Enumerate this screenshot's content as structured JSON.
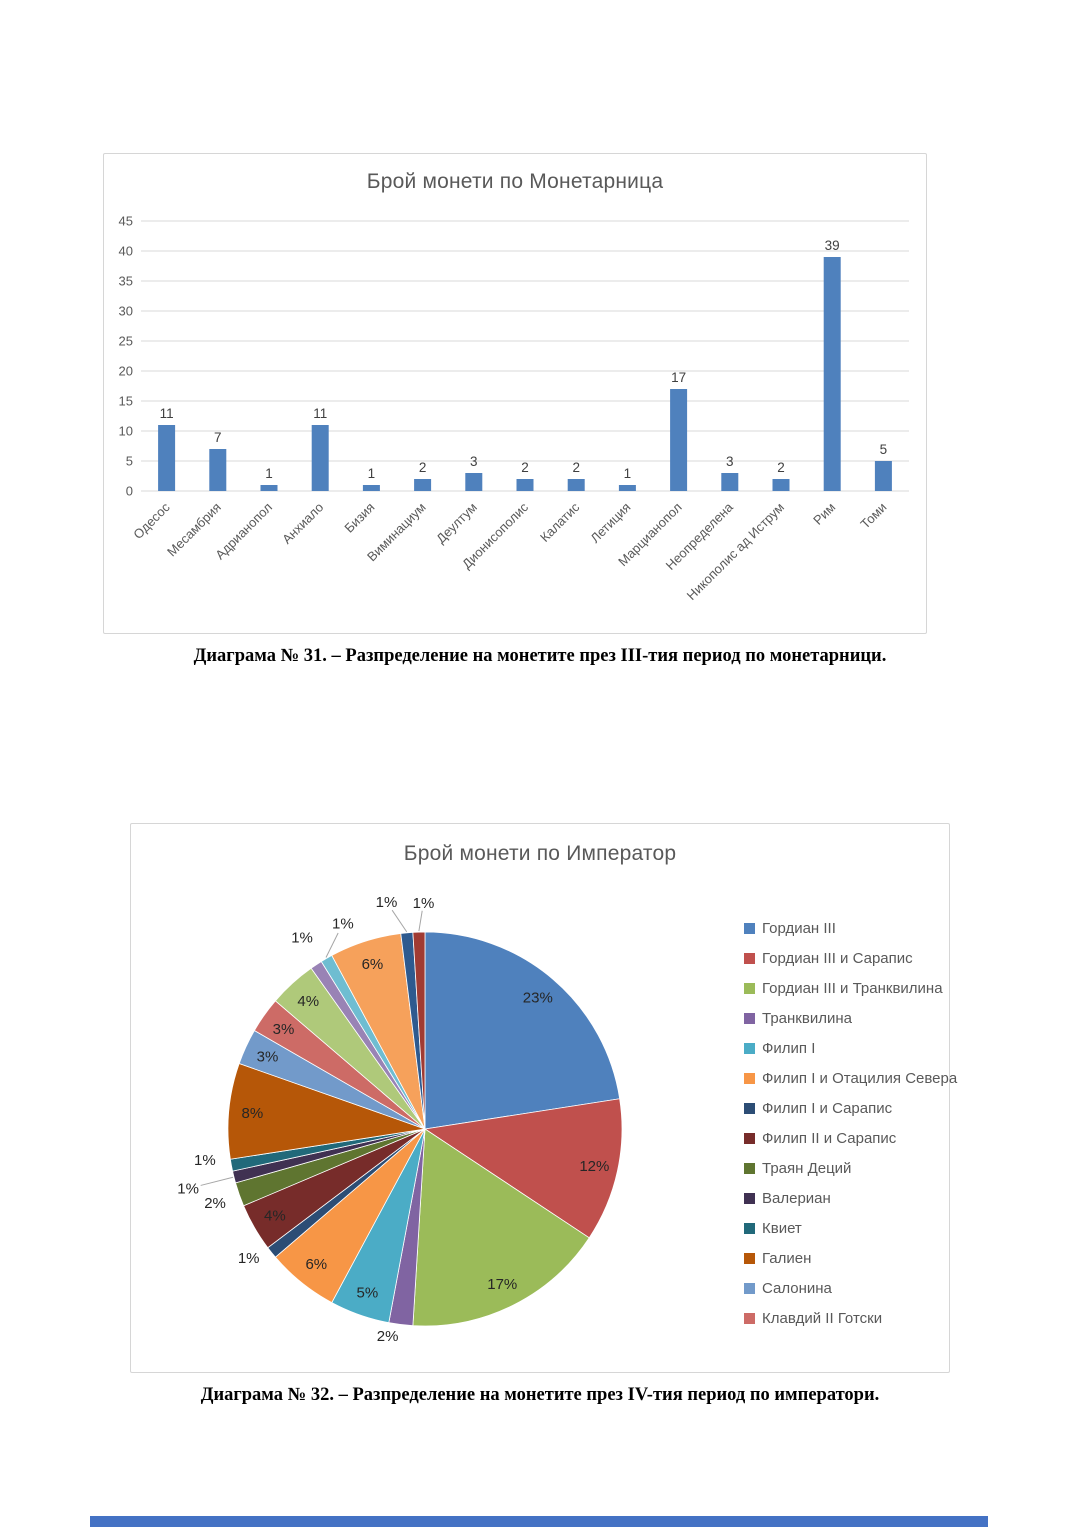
{
  "captions": {
    "diagram31": "Диаграма № 31. – Разпределение на монетите през III-тия период по монетарници.",
    "diagram32": "Диаграма № 32. – Разпределение на монетите през IV-тия период по императори."
  },
  "chart_data": [
    {
      "type": "bar",
      "title": "Брой монети по Монетарница",
      "categories": [
        "Одесос",
        "Месамбрия",
        "Адрианопол",
        "Анхиало",
        "Бизия",
        "Виминациум",
        "Деултум",
        "Дионисополис",
        "Калатис",
        "Летиция",
        "Марцианопол",
        "Неопределена",
        "Никополис ад Иструм",
        "Рим",
        "Томи"
      ],
      "values": [
        11,
        7,
        1,
        11,
        1,
        2,
        3,
        2,
        2,
        1,
        17,
        3,
        2,
        39,
        5
      ],
      "xlabel": "",
      "ylabel": "",
      "ylim": [
        0,
        45
      ],
      "ytick_step": 5,
      "yticks": [
        0,
        5,
        10,
        15,
        20,
        25,
        30,
        35,
        40,
        45
      ],
      "grid": true,
      "data_labels": true,
      "bar_color": "#4F81BD",
      "grid_color": "#D9D9D9",
      "axis_text_color": "#595959",
      "value_label_color": "#404040",
      "legend_position": "none"
    },
    {
      "type": "pie",
      "title": "Брой монети по Император",
      "start_angle_deg": 0,
      "direction": "clockwise",
      "legend_position": "right",
      "legend_visible_count": 14,
      "label_color": "#262626",
      "leader_color": "#A6A6A6",
      "slices": [
        {
          "label": "Гордиан III",
          "pct": 23,
          "color": "#4F81BD"
        },
        {
          "label": "Гордиан III и Сарапис",
          "pct": 12,
          "color": "#C0504D"
        },
        {
          "label": "Гордиан III и Транквилина",
          "pct": 17,
          "color": "#9BBB59"
        },
        {
          "label": "Транквилина",
          "pct": 2,
          "color": "#8064A2"
        },
        {
          "label": "Филип I",
          "pct": 5,
          "color": "#4BACC6"
        },
        {
          "label": "Филип I и Отацилия Севера",
          "pct": 6,
          "color": "#F79646"
        },
        {
          "label": "Филип I и Сарапис",
          "pct": 1,
          "color": "#2C4D75"
        },
        {
          "label": "Филип II и Сарапис",
          "pct": 4,
          "color": "#772C2A"
        },
        {
          "label": "Траян Деций",
          "pct": 2,
          "color": "#5F7530"
        },
        {
          "label": "Валериан",
          "pct": 1,
          "color": "#403152"
        },
        {
          "label": "Квиет",
          "pct": 1,
          "color": "#21697A"
        },
        {
          "label": "Галиен",
          "pct": 8,
          "color": "#B65708"
        },
        {
          "label": "Салонина",
          "pct": 3,
          "color": "#729ACA"
        },
        {
          "label": "Клавдий II Готски",
          "pct": 3,
          "color": "#CD6B66"
        },
        {
          "label": "",
          "pct": 4,
          "color": "#AFC97A"
        },
        {
          "label": "",
          "pct": 1,
          "color": "#9983B5"
        },
        {
          "label": "",
          "pct": 1,
          "color": "#6FBDD1"
        },
        {
          "label": "",
          "pct": 6,
          "color": "#F6A15B"
        },
        {
          "label": "",
          "pct": 1,
          "color": "#2E5A8F"
        },
        {
          "label": "",
          "pct": 1,
          "color": "#A03B33"
        }
      ]
    }
  ],
  "colors": {
    "chart_title": "#595959",
    "chart_border": "#D6D6D6",
    "bottom_strip": "#4472C4"
  }
}
